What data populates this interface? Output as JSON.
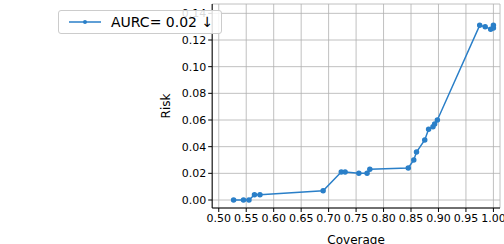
{
  "chart_data": {
    "type": "line",
    "x_label": "Coverage",
    "y_label": "Risk",
    "x": [
      0.527,
      0.545,
      0.555,
      0.565,
      0.575,
      0.69,
      0.723,
      0.73,
      0.755,
      0.77,
      0.775,
      0.845,
      0.855,
      0.86,
      0.875,
      0.882,
      0.89,
      0.893,
      0.898,
      0.975,
      0.985,
      0.995,
      1.0,
      1.0
    ],
    "series": [
      {
        "name": "AURC= 0.02 ↓",
        "color": "#2a7fc8",
        "marker": "o",
        "line_style": "solid",
        "values": [
          0.0,
          0.0,
          0.0,
          0.004,
          0.004,
          0.007,
          0.021,
          0.021,
          0.02,
          0.02,
          0.023,
          0.024,
          0.03,
          0.036,
          0.045,
          0.053,
          0.055,
          0.057,
          0.06,
          0.131,
          0.13,
          0.128,
          0.131,
          0.129
        ]
      }
    ],
    "xlim": [
      0.488,
      1.012
    ],
    "xticks": [
      {
        "value": 0.5,
        "label": "0.50"
      },
      {
        "value": 0.55,
        "label": "0.55"
      },
      {
        "value": 0.6,
        "label": "0.60"
      },
      {
        "value": 0.65,
        "label": "0.65"
      },
      {
        "value": 0.7,
        "label": "0.70"
      },
      {
        "value": 0.75,
        "label": "0.75"
      },
      {
        "value": 0.8,
        "label": "0.80"
      },
      {
        "value": 0.85,
        "label": "0.85"
      },
      {
        "value": 0.9,
        "label": "0.90"
      },
      {
        "value": 0.95,
        "label": "0.95"
      },
      {
        "value": 1.0,
        "label": "1.00"
      }
    ],
    "ylim": [
      -0.006,
      0.147
    ],
    "yticks": [
      {
        "value": 0,
        "label": "0.00"
      },
      {
        "value": 0.02,
        "label": "0.02"
      },
      {
        "value": 0.04,
        "label": "0.04"
      },
      {
        "value": 0.06,
        "label": "0.06"
      },
      {
        "value": 0.08,
        "label": "0.08"
      },
      {
        "value": 0.1,
        "label": "0.10"
      },
      {
        "value": 0.12,
        "label": "0.12"
      },
      {
        "value": 0.14,
        "label": "0.14"
      }
    ],
    "grid": true,
    "legend": "upper left"
  }
}
